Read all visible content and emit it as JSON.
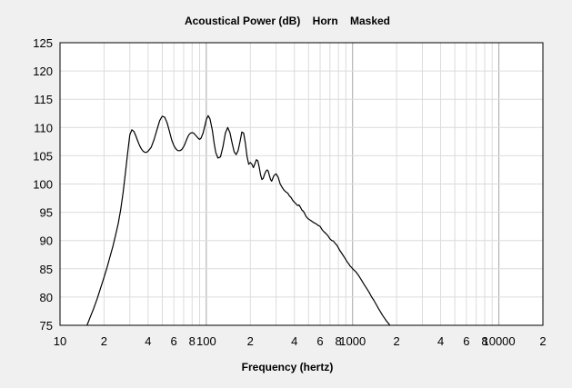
{
  "chart_data": {
    "type": "line",
    "title": "Acoustical Power (dB)    Horn    Masked",
    "xlabel": "Frequency (hertz)",
    "ylabel": "",
    "xscale": "log",
    "xlim": [
      10,
      20000
    ],
    "ylim": [
      75,
      125
    ],
    "grid": true,
    "y_ticks": [
      75,
      80,
      85,
      90,
      95,
      100,
      105,
      110,
      115,
      120,
      125
    ],
    "x_ticks": [
      {
        "value": 10,
        "label": "10"
      },
      {
        "value": 20,
        "label": "2"
      },
      {
        "value": 40,
        "label": "4"
      },
      {
        "value": 60,
        "label": "6"
      },
      {
        "value": 80,
        "label": "8"
      },
      {
        "value": 100,
        "label": "100"
      },
      {
        "value": 200,
        "label": "2"
      },
      {
        "value": 400,
        "label": "4"
      },
      {
        "value": 600,
        "label": "6"
      },
      {
        "value": 800,
        "label": "8"
      },
      {
        "value": 1000,
        "label": "1000"
      },
      {
        "value": 2000,
        "label": "2"
      },
      {
        "value": 4000,
        "label": "4"
      },
      {
        "value": 6000,
        "label": "6"
      },
      {
        "value": 8000,
        "label": "8"
      },
      {
        "value": 10000,
        "label": "10000"
      },
      {
        "value": 20000,
        "label": "2"
      }
    ],
    "series": [
      {
        "color": "#000000",
        "x": [
          15.3,
          16,
          17,
          18,
          19,
          20,
          21,
          22,
          23,
          24,
          25,
          26,
          27,
          28,
          29,
          30,
          31,
          32,
          33,
          34,
          35,
          36,
          37,
          38,
          39,
          40,
          42,
          44,
          46,
          48,
          50,
          52,
          54,
          56,
          58,
          60,
          62,
          64,
          66,
          68,
          70,
          72,
          74,
          76,
          78,
          80,
          82,
          84,
          86,
          88,
          90,
          92,
          95,
          98,
          100,
          103,
          106,
          110,
          113,
          116,
          120,
          125,
          130,
          135,
          140,
          145,
          150,
          155,
          160,
          165,
          170,
          175,
          180,
          185,
          190,
          195,
          200,
          205,
          210,
          215,
          220,
          225,
          230,
          235,
          240,
          245,
          250,
          255,
          260,
          265,
          270,
          275,
          280,
          285,
          290,
          300,
          310,
          320,
          330,
          340,
          350,
          360,
          370,
          380,
          390,
          400,
          410,
          420,
          430,
          440,
          450,
          460,
          470,
          480,
          490,
          500,
          520,
          540,
          560,
          580,
          600,
          620,
          640,
          660,
          680,
          700,
          720,
          740,
          760,
          780,
          800,
          820,
          840,
          860,
          880,
          900,
          920,
          940,
          960,
          980,
          1000,
          1050,
          1100,
          1150,
          1200,
          1250,
          1300,
          1350,
          1400,
          1450,
          1500,
          1550,
          1600,
          1650,
          1700,
          1750,
          1800,
          1850,
          1900
        ],
        "y": [
          75.0,
          76.3,
          78.0,
          79.8,
          81.7,
          83.5,
          85.3,
          87.2,
          89.0,
          91.0,
          93.0,
          95.5,
          98.5,
          102.0,
          105.5,
          108.7,
          109.6,
          109.3,
          108.5,
          107.6,
          106.8,
          106.2,
          105.8,
          105.6,
          105.6,
          105.8,
          106.5,
          107.9,
          109.6,
          111.2,
          112.0,
          111.8,
          110.8,
          109.3,
          107.8,
          106.8,
          106.2,
          105.9,
          105.9,
          106.1,
          106.6,
          107.3,
          108.1,
          108.7,
          109.0,
          109.1,
          109.0,
          108.7,
          108.4,
          108.1,
          107.9,
          108.1,
          109.0,
          110.4,
          111.4,
          112.1,
          111.5,
          109.5,
          107.3,
          105.6,
          104.6,
          104.8,
          106.6,
          109.0,
          110.0,
          109.1,
          107.3,
          105.7,
          105.2,
          105.9,
          107.5,
          109.2,
          109.0,
          107.2,
          104.8,
          103.5,
          103.8,
          103.5,
          102.9,
          103.6,
          104.3,
          104.1,
          103.0,
          101.6,
          100.8,
          101.0,
          101.7,
          102.2,
          102.5,
          102.3,
          101.5,
          100.8,
          100.5,
          101.0,
          101.5,
          101.8,
          101.2,
          100.0,
          99.4,
          98.9,
          98.6,
          98.4,
          97.9,
          97.6,
          97.1,
          96.8,
          96.5,
          96.2,
          96.3,
          95.9,
          95.4,
          95.2,
          94.8,
          94.3,
          94.0,
          93.8,
          93.5,
          93.2,
          93.0,
          92.7,
          92.5,
          91.9,
          91.5,
          91.2,
          90.8,
          90.3,
          90.0,
          89.9,
          89.5,
          89.2,
          88.7,
          88.2,
          87.8,
          87.4,
          87.0,
          86.6,
          86.2,
          85.9,
          85.5,
          85.3,
          85.0,
          84.5,
          83.8,
          83.0,
          82.2,
          81.5,
          80.8,
          80.0,
          79.4,
          78.7,
          78.0,
          77.4,
          76.8,
          76.3,
          75.8,
          75.4,
          75.0,
          74.6,
          74.2
        ]
      }
    ]
  }
}
